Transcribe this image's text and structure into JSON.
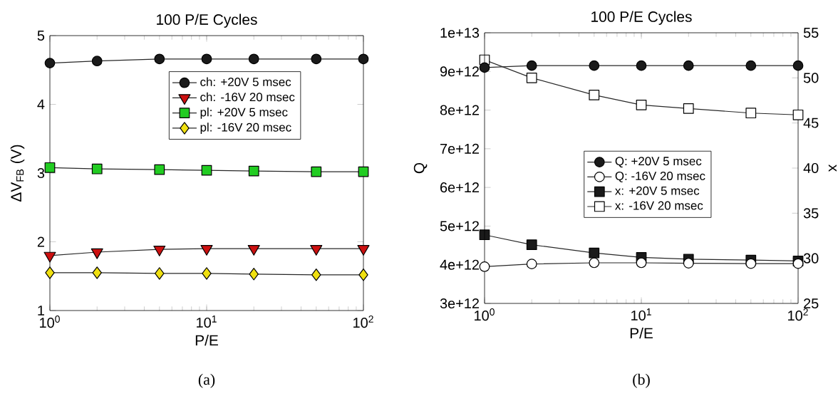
{
  "chart_data": [
    {
      "type": "line",
      "title": "100 P/E Cycles",
      "xlabel": "P/E",
      "ylabel": "ΔV$_{FB}$ (V)",
      "log": "x",
      "xlim": [
        1,
        100
      ],
      "xticks": [
        {
          "value": 1,
          "label": "10$^{0}$"
        },
        {
          "value": 10,
          "label": "10$^{1}$"
        },
        {
          "value": 100,
          "label": "10$^{2}$"
        }
      ],
      "ylim": [
        1,
        5
      ],
      "yticks": [
        1,
        2,
        3,
        4,
        5
      ],
      "legend": "top",
      "line_style": "solid",
      "annotations": [
        "(a)"
      ],
      "x": [
        1,
        2,
        5,
        10,
        20,
        50,
        100
      ],
      "series": [
        {
          "name": "ch: +20V 5 msec",
          "color": "#1a1a1a",
          "marker": "circle",
          "values": [
            4.6,
            4.63,
            4.66,
            4.66,
            4.66,
            4.66,
            4.66
          ]
        },
        {
          "name": "ch: -16V 20 msec",
          "color": "#cc1010",
          "marker": "triangle",
          "values": [
            1.8,
            1.85,
            1.89,
            1.9,
            1.9,
            1.9,
            1.9
          ]
        },
        {
          "name": "pl: +20V 5 msec",
          "color": "#22cc22",
          "marker": "square",
          "values": [
            3.08,
            3.06,
            3.05,
            3.04,
            3.03,
            3.02,
            3.02
          ]
        },
        {
          "name": "pl: -16V 20 msec",
          "color": "#f0e010",
          "marker": "diamond",
          "values": [
            1.55,
            1.55,
            1.54,
            1.54,
            1.53,
            1.52,
            1.52
          ]
        }
      ]
    },
    {
      "type": "line",
      "title": "100 P/E Cycles",
      "xlabel": "P/E",
      "ylabel": "Q",
      "y2label": "x",
      "log": "x",
      "xlim": [
        1,
        100
      ],
      "xticks": [
        {
          "value": 1,
          "label": "10$^{0}$"
        },
        {
          "value": 10,
          "label": "10$^{1}$"
        },
        {
          "value": 100,
          "label": "10$^{2}$"
        }
      ],
      "ylim": [
        3000000000000,
        10000000000000
      ],
      "yticks": [
        {
          "value": 3000000000000,
          "label": "3e+12"
        },
        {
          "value": 4000000000000,
          "label": "4e+12"
        },
        {
          "value": 5000000000000,
          "label": "5e+12"
        },
        {
          "value": 6000000000000,
          "label": "6e+12"
        },
        {
          "value": 7000000000000,
          "label": "7e+12"
        },
        {
          "value": 8000000000000,
          "label": "8e+12"
        },
        {
          "value": 9000000000000,
          "label": "9e+12"
        },
        {
          "value": 10000000000000,
          "label": "1e+13"
        }
      ],
      "y2lim": [
        25,
        55
      ],
      "y2ticks": [
        25,
        30,
        35,
        40,
        45,
        50,
        55
      ],
      "legend": "center",
      "line_style": "solid",
      "annotations": [
        "(b)"
      ],
      "x": [
        1,
        2,
        5,
        10,
        20,
        50,
        100
      ],
      "series": [
        {
          "name": "Q: +20V 5 msec",
          "color": "#1a1a1a",
          "marker": "circle",
          "values": [
            9100000000000,
            9150000000000,
            9150000000000,
            9150000000000,
            9150000000000,
            9150000000000,
            9150000000000
          ]
        },
        {
          "name": "Q: -16V 20 msec",
          "color": "#ffffff",
          "marker": "circle",
          "values": [
            3950000000000,
            4020000000000,
            4050000000000,
            4050000000000,
            4040000000000,
            4030000000000,
            4030000000000
          ]
        },
        {
          "name": "x: +20V 5 msec",
          "color": "#1a1a1a",
          "marker": "square",
          "axis": "y2",
          "values": [
            32.6,
            31.5,
            30.6,
            30.1,
            29.9,
            29.8,
            29.7
          ]
        },
        {
          "name": "x: -16V 20 msec",
          "color": "#ffffff",
          "marker": "square",
          "axis": "y2",
          "values": [
            52.0,
            50.0,
            48.1,
            47.0,
            46.6,
            46.1,
            45.9
          ]
        }
      ]
    }
  ]
}
